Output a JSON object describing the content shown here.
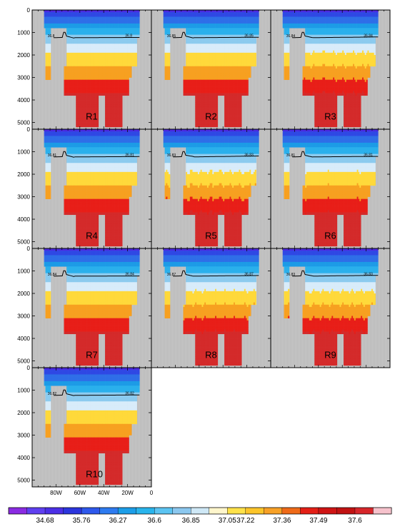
{
  "chart_data": {
    "type": "heatmap",
    "panels": [
      {
        "label": "R1",
        "contour_left": "36.8",
        "contour_right": "36.8",
        "wiggle": 0.2
      },
      {
        "label": "R2",
        "contour_left": "36.85",
        "contour_right": "36.85",
        "wiggle": 0.4
      },
      {
        "label": "R3",
        "contour_left": "36.84",
        "contour_right": "36.84",
        "wiggle": 0.7
      },
      {
        "label": "R4",
        "contour_left": "36.81",
        "contour_right": "36.81",
        "wiggle": 0.3
      },
      {
        "label": "R5",
        "contour_left": "36.83",
        "contour_right": "36.83",
        "wiggle": 0.9
      },
      {
        "label": "R6",
        "contour_left": "36.81",
        "contour_right": "36.81",
        "wiggle": 0.5
      },
      {
        "label": "R7",
        "contour_left": "36.84",
        "contour_right": "36.84",
        "wiggle": 0.15
      },
      {
        "label": "R8",
        "contour_left": "36.87",
        "contour_right": "36.87",
        "wiggle": 0.6
      },
      {
        "label": "R9",
        "contour_left": "36.83",
        "contour_right": "36.83",
        "wiggle": 0.8
      },
      {
        "label": "R10",
        "contour_left": "36.82",
        "contour_right": "36.82",
        "wiggle": 0.35
      }
    ],
    "y_ticks": [
      0,
      1000,
      2000,
      3000,
      4000,
      5000
    ],
    "ylim": [
      0,
      5300
    ],
    "x_ticks": [
      {
        "value": -80,
        "label": "80W"
      },
      {
        "value": -60,
        "label": "60W"
      },
      {
        "value": -40,
        "label": "40W"
      },
      {
        "value": -20,
        "label": "20W"
      },
      {
        "value": 0,
        "label": "0"
      }
    ],
    "xlim": [
      -100,
      0
    ],
    "layers": [
      {
        "depth": [
          0,
          150
        ],
        "color": "#4a2be0"
      },
      {
        "depth": [
          150,
          350
        ],
        "color": "#2f48e4"
      },
      {
        "depth": [
          350,
          600
        ],
        "color": "#2e6ee8"
      },
      {
        "depth": [
          600,
          850
        ],
        "color": "#1c9be6"
      },
      {
        "depth": [
          850,
          1100
        ],
        "color": "#2ab0ec"
      },
      {
        "depth": [
          1100,
          1500
        ],
        "color": "#8ccbef"
      },
      {
        "depth": [
          1500,
          1900
        ],
        "color": "#d8ecfa"
      },
      {
        "depth": [
          1900,
          2500
        ],
        "color": "#ffd93a"
      },
      {
        "depth": [
          2500,
          3100
        ],
        "color": "#f7a020"
      },
      {
        "depth": [
          3100,
          3700
        ],
        "color": "#e81e18"
      },
      {
        "depth": [
          3700,
          5300
        ],
        "color": "#d42a2a"
      }
    ],
    "colorbar": {
      "colors": [
        "#8a2be2",
        "#5f3ff0",
        "#4b2fe6",
        "#2b35dd",
        "#2e58ec",
        "#2e7bf0",
        "#1c9ee8",
        "#29b4ec",
        "#5cc4f2",
        "#8cc8ef",
        "#cfe8f6",
        "#fff6cc",
        "#ffe24a",
        "#fcc52a",
        "#f8a126",
        "#ef6a18",
        "#e41f16",
        "#cf1414",
        "#c11212",
        "#d7262a",
        "#f6c2cc"
      ],
      "labels": [
        {
          "index": 2,
          "text": "34.68"
        },
        {
          "index": 4,
          "text": "35.76"
        },
        {
          "index": 6,
          "text": "36.27"
        },
        {
          "index": 8,
          "text": "36.6"
        },
        {
          "index": 10,
          "text": "36.85"
        },
        {
          "index": 12,
          "text": "37.05"
        },
        {
          "index": 13,
          "text": "37.22"
        },
        {
          "index": 15,
          "text": "37.36"
        },
        {
          "index": 17,
          "text": "37.49"
        },
        {
          "index": 19,
          "text": "37.6"
        }
      ]
    }
  }
}
